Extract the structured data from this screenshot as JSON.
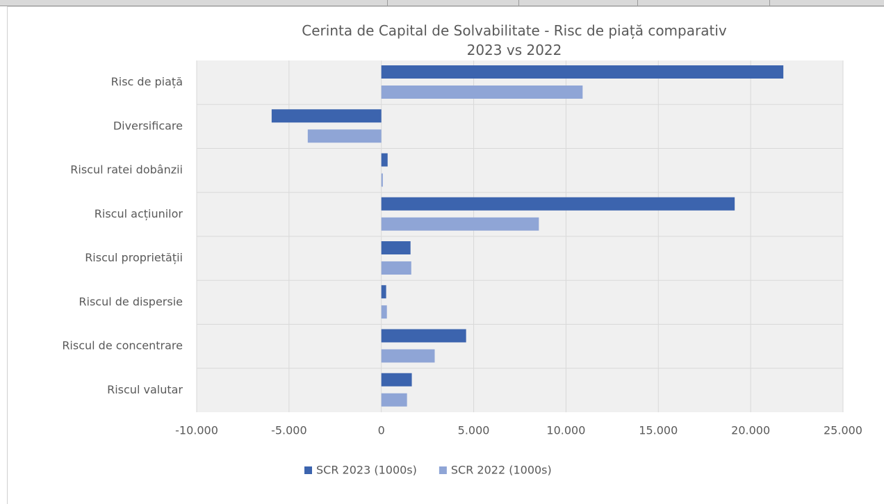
{
  "chart_data": {
    "type": "bar",
    "orientation": "horizontal",
    "title": "Cerinta de Capital de Solvabilitate - Risc de piață comparativ 2023 vs 2022",
    "categories": [
      "Risc de piață",
      "Diversificare",
      "Riscul ratei dobânzii",
      "Riscul acțiunilor",
      "Riscul proprietății",
      "Riscul de dispersie",
      "Riscul de concentrare",
      "Riscul valutar"
    ],
    "series": [
      {
        "name": "SCR 2023 (1000s)",
        "color": "#3c64ae",
        "values": [
          21770,
          -5940,
          340,
          19135,
          1580,
          260,
          4590,
          1650
        ]
      },
      {
        "name": "SCR 2022 (1000s)",
        "color": "#8fa5d6",
        "values": [
          10900,
          -3985,
          80,
          8530,
          1620,
          300,
          2890,
          1390
        ]
      }
    ],
    "xlim": [
      -10000,
      25000
    ],
    "xticks": [
      {
        "value": -10000,
        "label": "-10.000"
      },
      {
        "value": -5000,
        "label": "-5.000"
      },
      0,
      {
        "value": 5000,
        "label": "5.000"
      },
      {
        "value": 10000,
        "label": "10.000"
      },
      {
        "value": 15000,
        "label": "15.000"
      },
      {
        "value": 20000,
        "label": "20.000"
      },
      {
        "value": 25000,
        "label": "25.000"
      }
    ],
    "grid": true,
    "legend": "bottom"
  }
}
